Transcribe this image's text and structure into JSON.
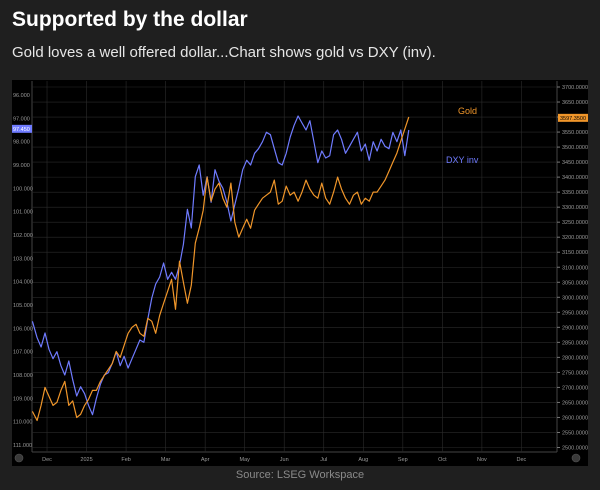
{
  "header": {
    "title": "Supported by the dollar",
    "subtitle": "Gold loves a well offered dollar...Chart shows gold vs DXY (inv)."
  },
  "footer": {
    "source": "Source: LSEG Workspace"
  },
  "colors": {
    "gold": "#f0962a",
    "dxy": "#6f7bff",
    "background": "#000000",
    "grid": "#2b2b2b"
  },
  "chart_data": {
    "type": "line",
    "x_tick_labels": [
      "Dec",
      "2025",
      "Feb",
      "Mar",
      "Apr",
      "May",
      "Jun",
      "Jul",
      "Aug",
      "Sep",
      "Oct",
      "Nov",
      "Dec"
    ],
    "x_tick_months": [
      1,
      2,
      3,
      4,
      5,
      6,
      7,
      8,
      9,
      10,
      11,
      12,
      13
    ],
    "x_range_months": [
      0.62,
      13.9
    ],
    "left_axis": {
      "series": "DXY inv",
      "inverted": true,
      "range": [
        95.4,
        111.3
      ],
      "ticks": [
        "96.000",
        "97.000",
        "98.000",
        "99.000",
        "100.000",
        "101.000",
        "102.000",
        "103.000",
        "104.000",
        "105.000",
        "106.000",
        "107.000",
        "108.000",
        "109.000",
        "110.000",
        "111.000"
      ],
      "current_value_label": "97.450"
    },
    "right_axis": {
      "series": "Gold",
      "range": [
        2485,
        3720
      ],
      "ticks": [
        "3700.0000",
        "3650.0000",
        "3600.0000",
        "3550.0000",
        "3500.0000",
        "3450.0000",
        "3400.0000",
        "3350.0000",
        "3300.0000",
        "3250.0000",
        "3200.0000",
        "3150.0000",
        "3100.0000",
        "3050.0000",
        "3000.0000",
        "2950.0000",
        "2900.0000",
        "2850.0000",
        "2800.0000",
        "2750.0000",
        "2700.0000",
        "2650.0000",
        "2600.0000",
        "2550.0000",
        "2500.0000"
      ],
      "current_value_label": "3597.3500"
    },
    "legend": [
      {
        "name": "Gold",
        "color": "#f0962a"
      },
      {
        "name": "DXY inv",
        "color": "#6f7bff"
      }
    ],
    "series": [
      {
        "name": "Gold",
        "axis": "right",
        "color": "#f0962a",
        "x": [
          0.63,
          0.75,
          0.85,
          0.95,
          1.05,
          1.15,
          1.25,
          1.35,
          1.45,
          1.55,
          1.65,
          1.75,
          1.85,
          1.95,
          2.05,
          2.15,
          2.25,
          2.35,
          2.45,
          2.55,
          2.65,
          2.75,
          2.85,
          2.95,
          3.05,
          3.15,
          3.25,
          3.35,
          3.45,
          3.55,
          3.65,
          3.75,
          3.85,
          3.95,
          4.05,
          4.15,
          4.25,
          4.35,
          4.45,
          4.55,
          4.65,
          4.75,
          4.85,
          4.95,
          5.05,
          5.15,
          5.25,
          5.35,
          5.45,
          5.55,
          5.65,
          5.75,
          5.85,
          5.95,
          6.05,
          6.15,
          6.25,
          6.35,
          6.45,
          6.55,
          6.65,
          6.75,
          6.85,
          6.95,
          7.05,
          7.15,
          7.25,
          7.35,
          7.45,
          7.55,
          7.65,
          7.75,
          7.85,
          7.95,
          8.05,
          8.15,
          8.25,
          8.35,
          8.45,
          8.55,
          8.65,
          8.75,
          8.85,
          8.95,
          9.05,
          9.15,
          9.25,
          9.35,
          9.45,
          9.55,
          9.65,
          9.75,
          9.85,
          9.95,
          10.05,
          10.15
        ],
        "y": [
          2620,
          2590,
          2640,
          2700,
          2670,
          2640,
          2650,
          2690,
          2720,
          2640,
          2655,
          2600,
          2610,
          2640,
          2660,
          2690,
          2690,
          2720,
          2740,
          2760,
          2780,
          2820,
          2800,
          2840,
          2880,
          2900,
          2910,
          2880,
          2870,
          2930,
          2920,
          2880,
          2940,
          2980,
          3020,
          3060,
          2960,
          3120,
          3050,
          2980,
          3040,
          3180,
          3230,
          3290,
          3400,
          3320,
          3360,
          3380,
          3330,
          3300,
          3380,
          3250,
          3200,
          3230,
          3260,
          3230,
          3290,
          3310,
          3330,
          3340,
          3350,
          3390,
          3310,
          3320,
          3370,
          3340,
          3350,
          3320,
          3350,
          3390,
          3360,
          3340,
          3330,
          3380,
          3330,
          3310,
          3350,
          3400,
          3360,
          3330,
          3310,
          3340,
          3350,
          3310,
          3330,
          3320,
          3350,
          3350,
          3370,
          3390,
          3420,
          3450,
          3480,
          3520,
          3560,
          3600
        ]
      },
      {
        "name": "DXY inv",
        "axis": "left",
        "color": "#6f7bff",
        "x": [
          0.63,
          0.75,
          0.85,
          0.95,
          1.05,
          1.15,
          1.25,
          1.35,
          1.45,
          1.55,
          1.65,
          1.75,
          1.85,
          1.95,
          2.05,
          2.15,
          2.25,
          2.35,
          2.45,
          2.55,
          2.65,
          2.75,
          2.85,
          2.95,
          3.05,
          3.15,
          3.25,
          3.35,
          3.45,
          3.55,
          3.65,
          3.75,
          3.85,
          3.95,
          4.05,
          4.15,
          4.25,
          4.35,
          4.45,
          4.55,
          4.65,
          4.75,
          4.85,
          4.95,
          5.05,
          5.15,
          5.25,
          5.35,
          5.45,
          5.55,
          5.65,
          5.75,
          5.85,
          5.95,
          6.05,
          6.15,
          6.25,
          6.35,
          6.45,
          6.55,
          6.65,
          6.75,
          6.85,
          6.95,
          7.05,
          7.15,
          7.25,
          7.35,
          7.45,
          7.55,
          7.65,
          7.75,
          7.85,
          7.95,
          8.05,
          8.15,
          8.25,
          8.35,
          8.45,
          8.55,
          8.65,
          8.75,
          8.85,
          8.95,
          9.05,
          9.15,
          9.25,
          9.35,
          9.45,
          9.55,
          9.65,
          9.75,
          9.85,
          9.95,
          10.05,
          10.15
        ],
        "y": [
          105.7,
          106.4,
          106.8,
          106.2,
          106.9,
          107.3,
          107.0,
          107.6,
          108.0,
          107.4,
          108.2,
          108.9,
          108.5,
          108.8,
          109.3,
          109.7,
          109.0,
          108.4,
          108.0,
          107.9,
          107.5,
          107.0,
          107.6,
          107.2,
          107.7,
          107.3,
          106.9,
          106.5,
          106.6,
          105.6,
          104.7,
          104.1,
          103.8,
          103.2,
          103.9,
          103.6,
          103.9,
          103.3,
          102.4,
          100.9,
          101.7,
          99.5,
          99.0,
          100.3,
          99.5,
          100.6,
          99.2,
          99.7,
          100.0,
          100.6,
          101.4,
          100.7,
          100.0,
          99.2,
          98.8,
          99.0,
          98.5,
          98.3,
          98.0,
          97.6,
          97.7,
          98.3,
          98.9,
          99.0,
          98.5,
          97.8,
          97.3,
          96.9,
          97.2,
          97.5,
          97.1,
          98.0,
          98.9,
          98.4,
          98.7,
          98.6,
          97.7,
          97.5,
          97.9,
          98.5,
          98.2,
          97.9,
          97.6,
          98.4,
          98.1,
          98.8,
          98.0,
          98.4,
          97.9,
          98.2,
          98.3,
          97.6,
          98.0,
          97.5,
          98.6,
          97.5
        ]
      }
    ]
  }
}
